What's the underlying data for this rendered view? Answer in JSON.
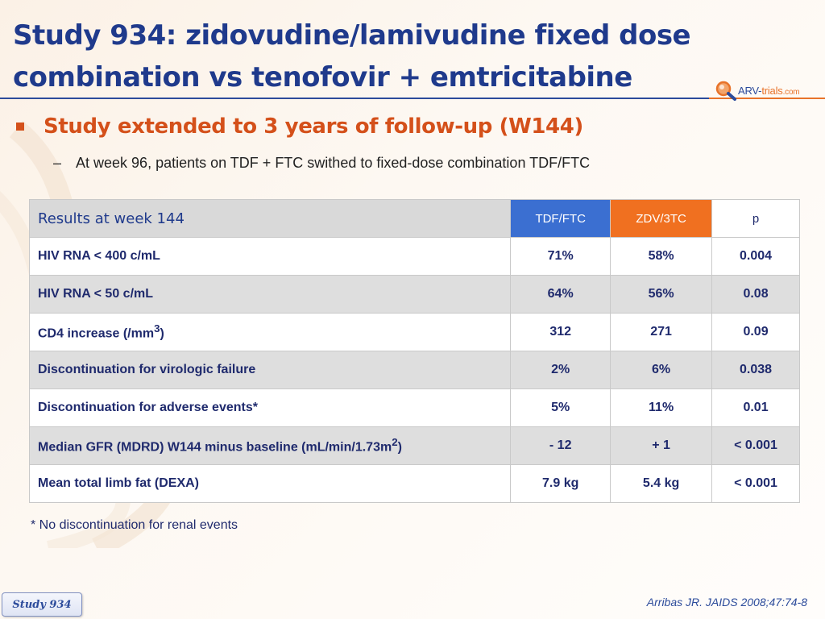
{
  "header": {
    "title_line1": "Study 934: zidovudine/lamivudine fixed dose",
    "title_line2": "combination vs tenofovir + emtricitabine",
    "logo": {
      "part1": "ARV-",
      "part2": "trials",
      "part3": ".com"
    }
  },
  "bullet": {
    "text": "Study extended to 3 years of follow-up (W144)",
    "sub_dash": "–",
    "sub_text": "At week 96, patients on TDF + FTC swithed to fixed-dose combination TDF/FTC"
  },
  "table": {
    "header": {
      "label": "Results at week 144",
      "col1": "TDF/FTC",
      "col2": "ZDV/3TC",
      "col3": "p"
    },
    "rows": [
      {
        "label": "HIV RNA < 400 c/mL",
        "tdf": "71%",
        "zdv": "58%",
        "p": "0.004"
      },
      {
        "label": "HIV RNA < 50 c/mL",
        "tdf": "64%",
        "zdv": "56%",
        "p": "0.08"
      },
      {
        "label_main": "CD4 increase (/mm",
        "label_sup": "3",
        "label_end": ")",
        "tdf": "312",
        "zdv": "271",
        "p": "0.09"
      },
      {
        "label": "Discontinuation for virologic failure",
        "tdf": "2%",
        "zdv": "6%",
        "p": "0.038"
      },
      {
        "label": "Discontinuation for adverse events*",
        "tdf": "5%",
        "zdv": "11%",
        "p": "0.01"
      },
      {
        "label_main": "Median GFR (MDRD) W144 minus baseline (mL/min/1.73m",
        "label_sup": "2",
        "label_end": ")",
        "tdf": "- 12",
        "zdv": "+ 1",
        "p": "< 0.001"
      },
      {
        "label": "Mean total limb fat (DEXA)",
        "tdf": "7.9 kg",
        "zdv": "5.4 kg",
        "p": "< 0.001"
      }
    ]
  },
  "footnote": "* No discontinuation for renal events",
  "citation": "Arribas JR. JAIDS 2008;47:74-8",
  "study_tab": "Study 934",
  "colors": {
    "title": "#1f3a8c",
    "bullet": "#d4501a",
    "tdf_header": "#3b6fd1",
    "zdv_header": "#f07020",
    "row_alt": "#dedede"
  }
}
